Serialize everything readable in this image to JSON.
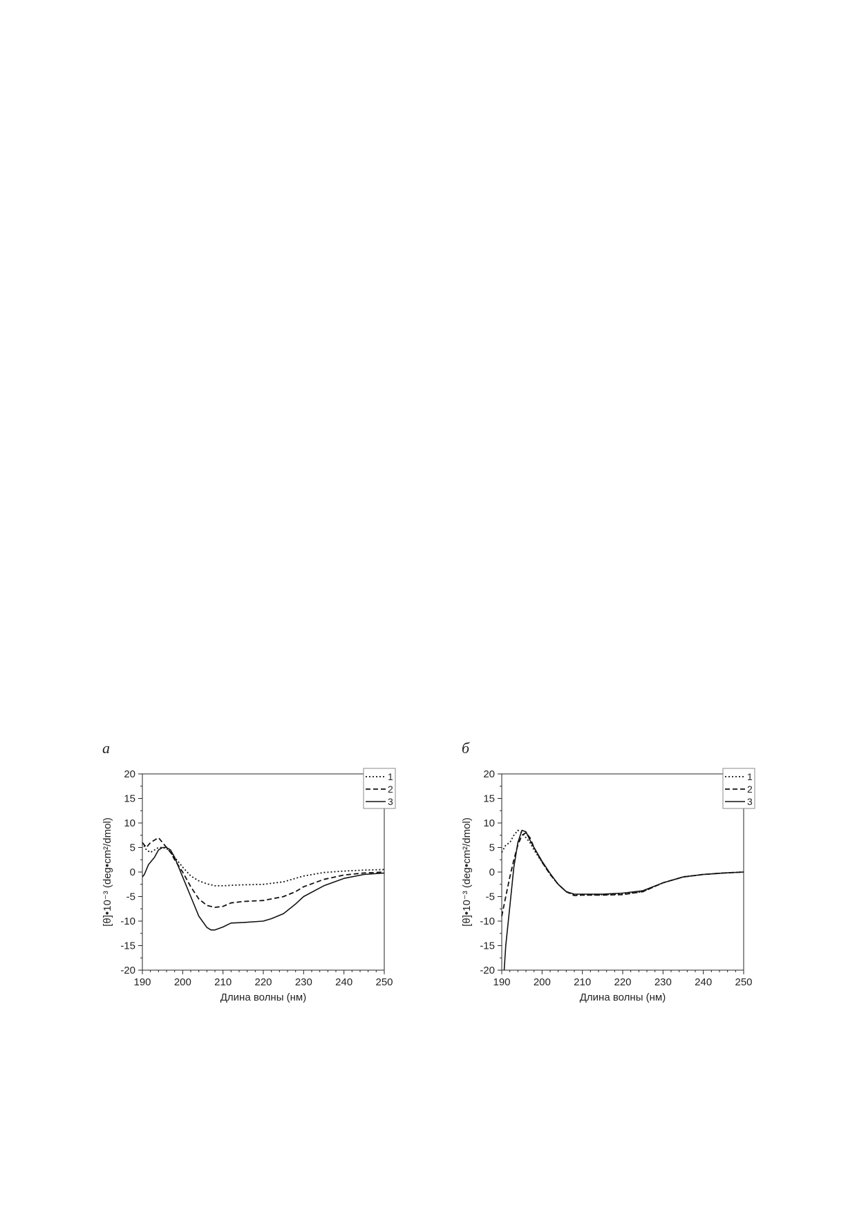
{
  "chart_data": [
    {
      "type": "line",
      "panel_label": "a",
      "xlabel": "Длина волны (нм)",
      "ylabel": "[θ]•10⁻³ (deg•cm²/dmol)",
      "xlim": [
        190,
        250
      ],
      "ylim": [
        -20,
        20
      ],
      "xticks": [
        190,
        200,
        210,
        220,
        230,
        240,
        250
      ],
      "yticks": [
        20,
        15,
        10,
        5,
        0,
        -5,
        -10,
        -15,
        -20
      ],
      "legend_position": "top-right",
      "series": [
        {
          "name": "1",
          "style": "dotted",
          "x": [
            190,
            191,
            192,
            193,
            194,
            195,
            196,
            197,
            198,
            200,
            202,
            204,
            206,
            208,
            210,
            212,
            215,
            220,
            225,
            230,
            235,
            240,
            245,
            250
          ],
          "y": [
            6,
            4.5,
            4,
            4.5,
            5,
            5,
            4.8,
            4,
            3,
            1,
            -0.8,
            -1.8,
            -2.4,
            -2.8,
            -2.8,
            -2.7,
            -2.6,
            -2.5,
            -2,
            -0.8,
            -0.1,
            0.2,
            0.4,
            0.5
          ]
        },
        {
          "name": "2",
          "style": "dashed",
          "x": [
            190,
            191,
            192,
            193,
            194,
            195,
            196,
            197,
            198,
            200,
            202,
            204,
            206,
            208,
            210,
            212,
            215,
            220,
            225,
            228,
            230,
            235,
            240,
            245,
            250
          ],
          "y": [
            6,
            5,
            6,
            6.5,
            7,
            6,
            5,
            4,
            2.5,
            0,
            -3,
            -5.5,
            -6.8,
            -7.2,
            -7,
            -6.3,
            -6,
            -5.8,
            -5,
            -4,
            -3,
            -1.5,
            -0.6,
            -0.2,
            0
          ]
        },
        {
          "name": "3",
          "style": "solid",
          "x": [
            190,
            190.5,
            191,
            191.5,
            192,
            193,
            194,
            195,
            196,
            197,
            198,
            199,
            200,
            202,
            204,
            206,
            207,
            208,
            210,
            212,
            215,
            220,
            222,
            225,
            228,
            230,
            235,
            240,
            245,
            250
          ],
          "y": [
            -1,
            -0.5,
            0.5,
            1.5,
            2,
            3,
            4.5,
            5,
            5,
            4.5,
            3,
            1,
            -1,
            -5,
            -9,
            -11.3,
            -11.8,
            -11.8,
            -11.2,
            -10.4,
            -10.3,
            -10,
            -9.5,
            -8.5,
            -6.5,
            -5,
            -2.8,
            -1.3,
            -0.5,
            -0.2
          ]
        }
      ]
    },
    {
      "type": "line",
      "panel_label": "б",
      "xlabel": "Длина волны (нм)",
      "ylabel": "[θ]•10⁻³ (deg•cm²/dmol)",
      "xlim": [
        190,
        250
      ],
      "ylim": [
        -20,
        20
      ],
      "xticks": [
        190,
        200,
        210,
        220,
        230,
        240,
        250
      ],
      "yticks": [
        20,
        15,
        10,
        5,
        0,
        -5,
        -10,
        -15,
        -20
      ],
      "legend_position": "top-right",
      "series": [
        {
          "name": "1",
          "style": "dotted",
          "x": [
            190,
            191,
            192,
            193,
            194,
            195,
            196,
            197,
            198,
            200,
            202,
            204,
            206,
            208,
            210,
            215,
            220,
            225,
            230,
            235,
            240,
            245,
            250
          ],
          "y": [
            4,
            5.5,
            6,
            7.5,
            8.5,
            8,
            7,
            6,
            4.5,
            2,
            -0.5,
            -2.5,
            -4,
            -4.6,
            -4.7,
            -4.6,
            -4.5,
            -4,
            -2.2,
            -1,
            -0.5,
            -0.2,
            0
          ]
        },
        {
          "name": "2",
          "style": "dashed",
          "x": [
            190,
            191,
            192,
            193,
            194,
            195,
            196,
            197,
            198,
            200,
            202,
            204,
            206,
            208,
            210,
            215,
            220,
            225,
            230,
            235,
            240,
            245,
            250
          ],
          "y": [
            -9,
            -5,
            -1,
            2.5,
            5.5,
            7.5,
            8,
            7,
            5,
            2,
            -0.5,
            -2.5,
            -4,
            -4.8,
            -4.7,
            -4.7,
            -4.6,
            -4,
            -2.2,
            -1,
            -0.5,
            -0.2,
            0
          ]
        },
        {
          "name": "3",
          "style": "solid",
          "x": [
            190.6,
            191,
            192,
            193,
            194,
            195,
            196,
            197,
            198,
            200,
            202,
            204,
            206,
            208,
            210,
            215,
            220,
            225,
            230,
            235,
            240,
            245,
            250
          ],
          "y": [
            -20,
            -15,
            -7,
            1,
            6,
            8.5,
            8.2,
            6.5,
            5,
            2.2,
            -0.3,
            -2.5,
            -4,
            -4.5,
            -4.5,
            -4.5,
            -4.3,
            -3.8,
            -2.2,
            -1,
            -0.5,
            -0.2,
            0
          ]
        }
      ]
    }
  ]
}
